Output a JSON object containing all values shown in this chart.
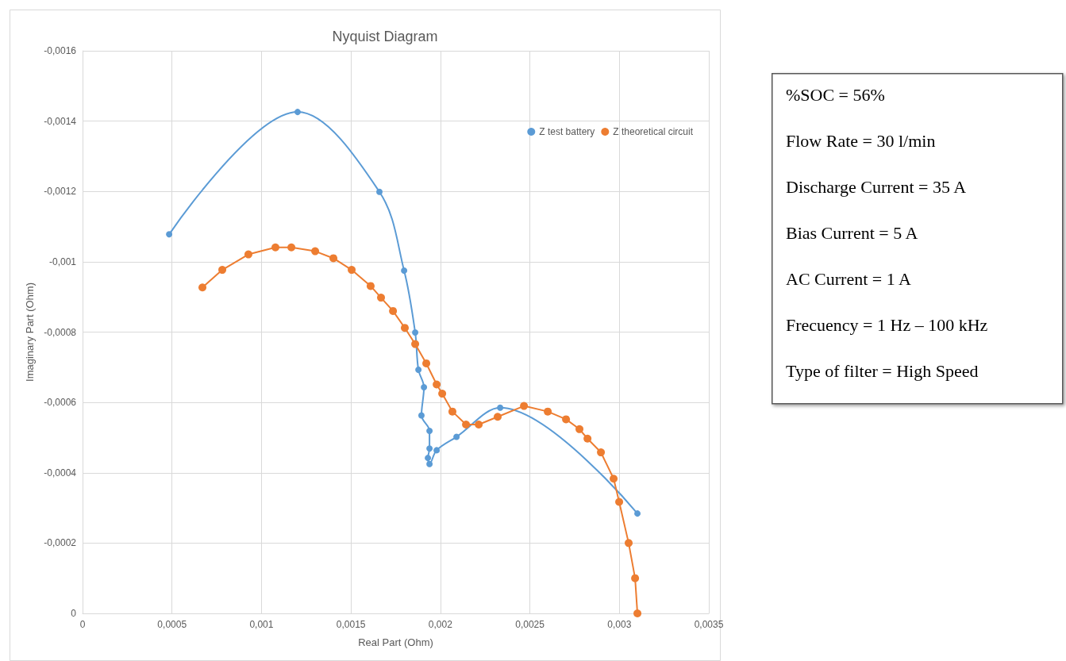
{
  "chart_data": {
    "type": "line",
    "title": "Nyquist Diagram",
    "xlabel": "Real Part (Ohm)",
    "ylabel": "Imaginary Part (Ohm)",
    "xlim": [
      0,
      0.0035
    ],
    "xticks": [
      0,
      {
        "value": 0.0005,
        "label": "0,0005"
      },
      {
        "value": 0.001,
        "label": "0,001"
      },
      {
        "value": 0.0015,
        "label": "0,0015"
      },
      {
        "value": 0.002,
        "label": "0,002"
      },
      {
        "value": 0.0025,
        "label": "0,0025"
      },
      {
        "value": 0.003,
        "label": "0,003"
      },
      {
        "value": 0.0035,
        "label": "0,0035"
      }
    ],
    "ylim": [
      0,
      -0.0016
    ],
    "yticks": [
      0,
      {
        "value": -0.0002,
        "label": "-0,0002"
      },
      {
        "value": -0.0004,
        "label": "-0,0004"
      },
      {
        "value": -0.0006,
        "label": "-0,0006"
      },
      {
        "value": -0.0008,
        "label": "-0,0008"
      },
      {
        "value": -0.001,
        "label": "-0,001"
      },
      {
        "value": -0.0012,
        "label": "-0,0012"
      },
      {
        "value": -0.0014,
        "label": "-0,0014"
      },
      {
        "value": -0.0016,
        "label": "-0,0016"
      }
    ],
    "grid": true,
    "legend": "top right",
    "marker": "circle",
    "line_style": "solid",
    "series": [
      {
        "name": "Z test battery",
        "color": "#5b9bd5",
        "x": [
          0.000484,
          0.001202,
          0.001659,
          0.001797,
          0.001859,
          0.001877,
          0.001908,
          0.001894,
          0.001939,
          0.001939,
          0.00193,
          0.001939,
          0.001979,
          0.00209,
          0.002334,
          0.003101
        ],
        "values": [
          -0.001078,
          -0.001426,
          -0.001199,
          -0.000975,
          -0.000799,
          -0.000693,
          -0.000643,
          -0.000563,
          -0.000519,
          -0.000469,
          -0.000442,
          -0.000425,
          -0.000464,
          -0.000502,
          -0.000585,
          -0.000284
        ]
      },
      {
        "name": "Z theoretical circuit",
        "color": "#ed7d31",
        "x": [
          0.00067,
          0.000781,
          0.000927,
          0.001078,
          0.001167,
          0.0013,
          0.001402,
          0.001504,
          0.00161,
          0.001668,
          0.001735,
          0.001801,
          0.001859,
          0.001921,
          0.001979,
          0.00201,
          0.002067,
          0.002143,
          0.002214,
          0.00232,
          0.002467,
          0.0026,
          0.002702,
          0.002777,
          0.002822,
          0.002897,
          0.002968,
          0.002999,
          0.003052,
          0.003088,
          0.003101
        ],
        "values": [
          -0.000927,
          -0.000977,
          -0.001021,
          -0.001041,
          -0.001041,
          -0.00103,
          -0.00101,
          -0.000977,
          -0.000931,
          -0.000898,
          -0.00086,
          -0.000812,
          -0.000766,
          -0.000711,
          -0.000651,
          -0.000625,
          -0.000574,
          -0.000537,
          -0.000537,
          -0.000559,
          -0.00059,
          -0.000574,
          -0.000552,
          -0.000524,
          -0.000497,
          -0.000458,
          -0.000383,
          -0.000317,
          -0.0002,
          -0.0001,
          0
        ]
      }
    ],
    "annotations": [
      "%SOC = 56%",
      "Flow Rate = 30 l/min",
      "Discharge Current = 35 A",
      "Bias Current = 5 A",
      "AC Current = 1 A",
      "Frecuency = 1 Hz – 100 kHz",
      "Type of filter = High Speed"
    ]
  }
}
